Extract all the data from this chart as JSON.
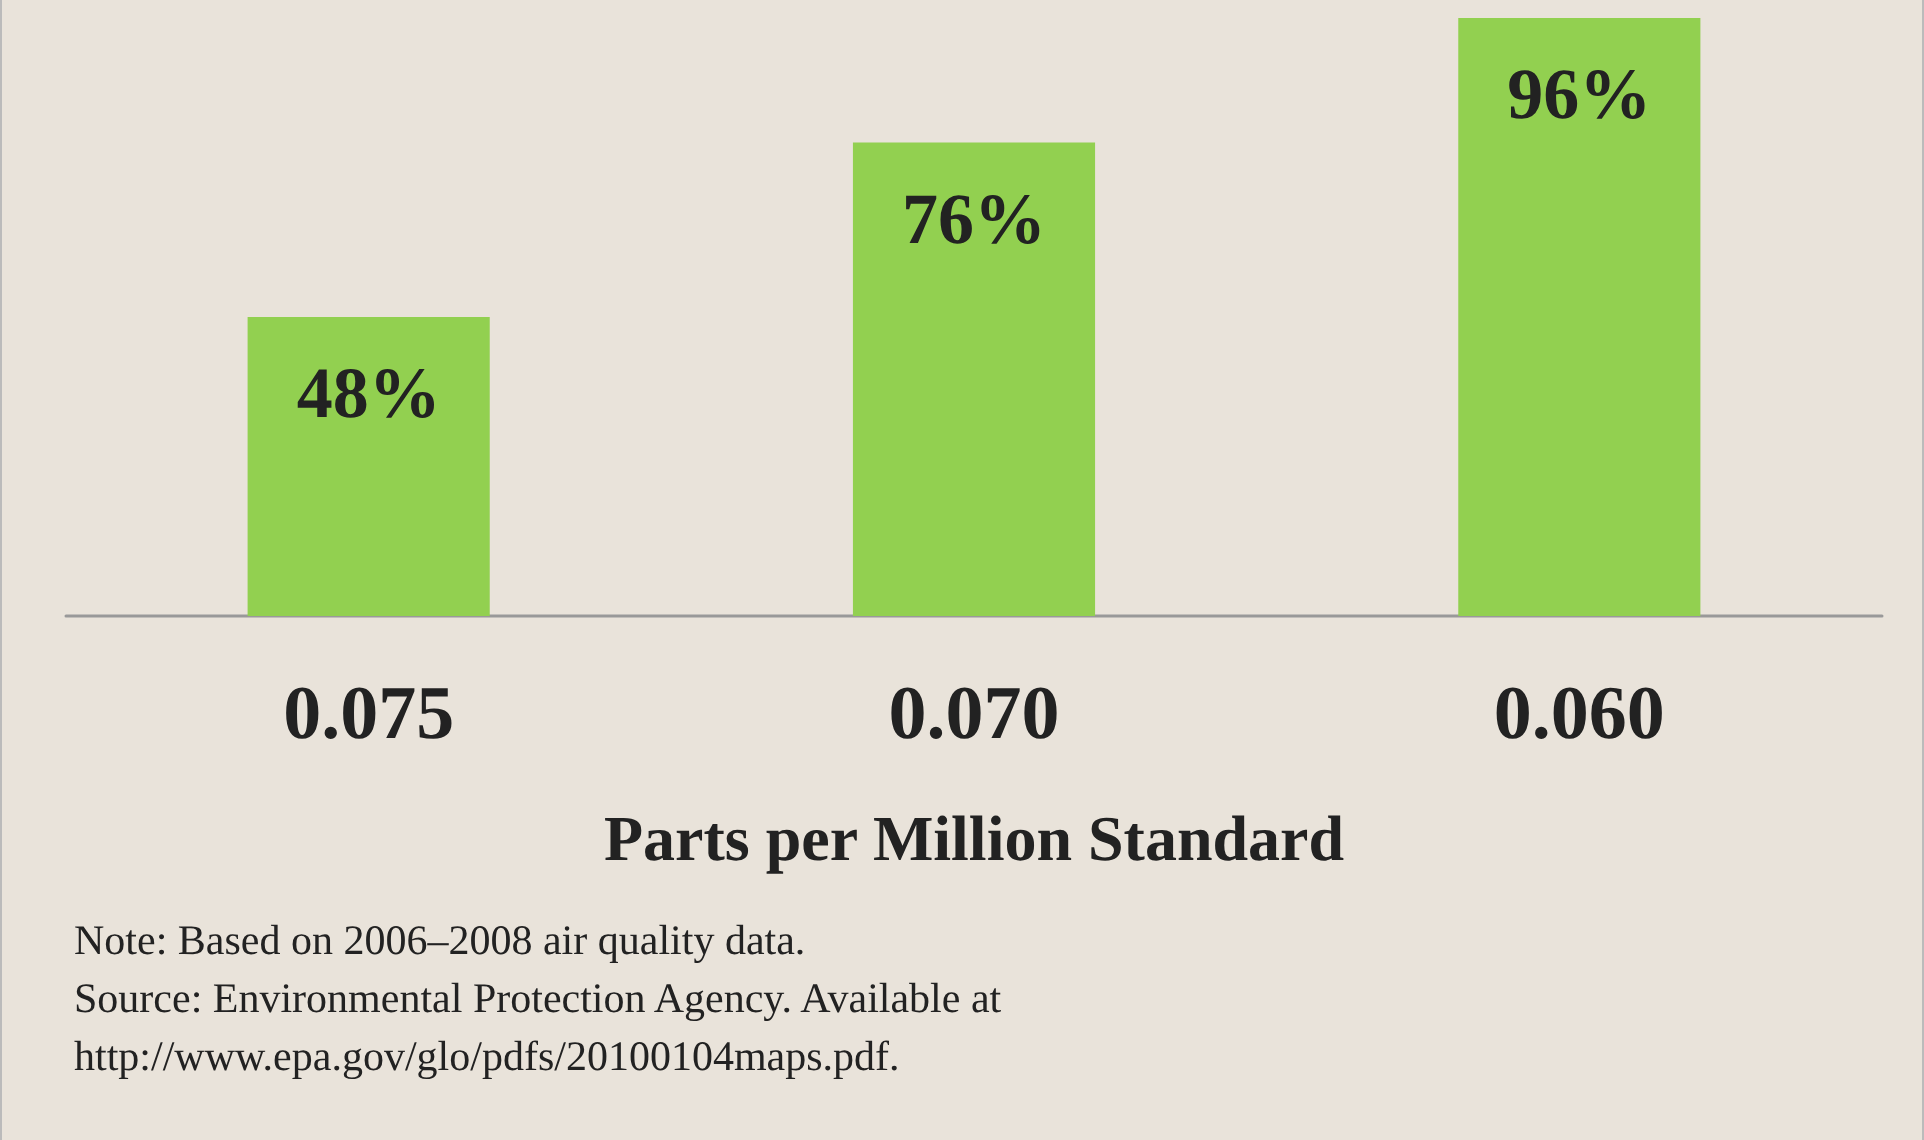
{
  "chart_data": {
    "type": "bar",
    "xlabel": "Parts per Million Standard",
    "categories": [
      "0.075",
      "0.070",
      "0.060"
    ],
    "values": [
      48,
      76,
      96
    ],
    "value_labels": [
      "48%",
      "76%",
      "96%"
    ],
    "relative": false,
    "color": "#92d050",
    "annotations": [
      "Note: Based on 2006–2008 air quality data.",
      "Source: Environmental Protection Agency. Available at http://www.epa.gov/glo/pdfs/20100104maps.pdf."
    ]
  }
}
